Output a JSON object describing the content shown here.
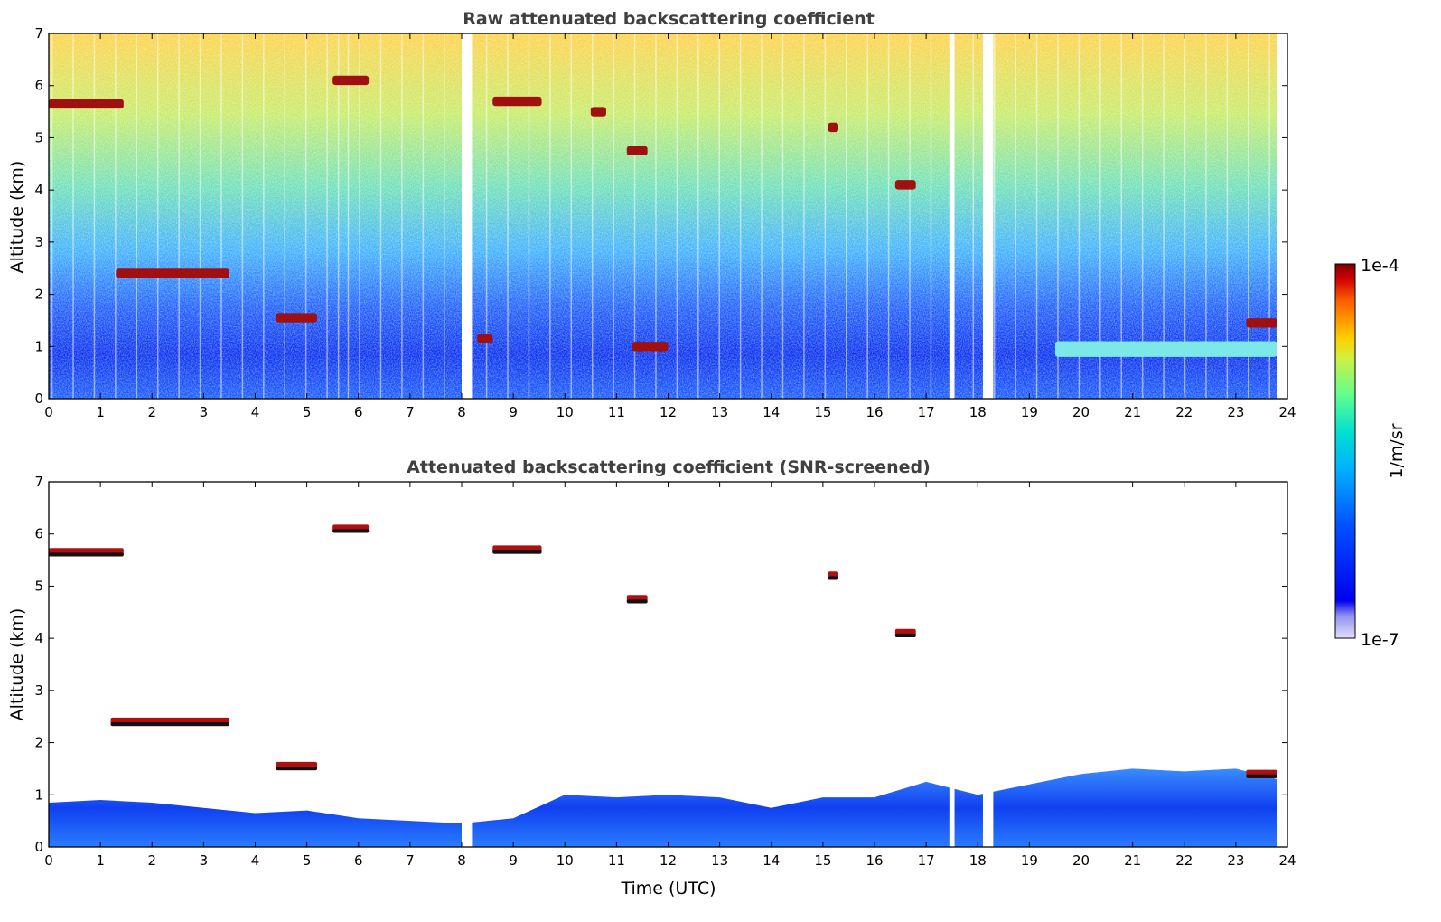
{
  "chart_data": [
    {
      "type": "heatmap",
      "title": "Raw attenuated backscattering coefficient",
      "xlabel": "",
      "ylabel": "Altitude (km)",
      "xlim": [
        0,
        24
      ],
      "ylim": [
        0,
        7
      ],
      "x_ticks": [
        "0",
        "1",
        "2",
        "3",
        "4",
        "5",
        "6",
        "7",
        "8",
        "9",
        "10",
        "11",
        "12",
        "13",
        "14",
        "15",
        "16",
        "17",
        "18",
        "19",
        "20",
        "21",
        "22",
        "23",
        "24"
      ],
      "y_ticks": [
        "0",
        "1",
        "2",
        "3",
        "4",
        "5",
        "6",
        "7"
      ],
      "data_gaps_utc": [
        [
          8.0,
          8.2
        ],
        [
          17.45,
          17.55
        ],
        [
          18.1,
          18.3
        ],
        [
          23.8,
          24.0
        ]
      ],
      "features": [
        {
          "kind": "cloud",
          "t_start": 0.0,
          "t_end": 1.45,
          "alt_km": 5.65,
          "intensity": "high"
        },
        {
          "kind": "cloud",
          "t_start": 1.3,
          "t_end": 3.5,
          "alt_km": 2.4,
          "intensity": "high"
        },
        {
          "kind": "cloud",
          "t_start": 4.4,
          "t_end": 5.2,
          "alt_km": 1.55,
          "intensity": "high"
        },
        {
          "kind": "cloud",
          "t_start": 5.5,
          "t_end": 6.2,
          "alt_km": 6.1,
          "intensity": "high"
        },
        {
          "kind": "cloud",
          "t_start": 8.6,
          "t_end": 9.55,
          "alt_km": 5.7,
          "intensity": "high"
        },
        {
          "kind": "cloud",
          "t_start": 8.3,
          "t_end": 8.6,
          "alt_km": 1.15,
          "intensity": "high"
        },
        {
          "kind": "cloud",
          "t_start": 10.5,
          "t_end": 10.8,
          "alt_km": 5.5,
          "intensity": "high"
        },
        {
          "kind": "cloud",
          "t_start": 11.2,
          "t_end": 11.6,
          "alt_km": 4.75,
          "intensity": "high"
        },
        {
          "kind": "cloud",
          "t_start": 11.3,
          "t_end": 12.0,
          "alt_km": 1.0,
          "intensity": "high"
        },
        {
          "kind": "cloud",
          "t_start": 15.1,
          "t_end": 15.3,
          "alt_km": 5.2,
          "intensity": "high"
        },
        {
          "kind": "cloud",
          "t_start": 16.4,
          "t_end": 16.8,
          "alt_km": 4.1,
          "intensity": "high"
        },
        {
          "kind": "cloud",
          "t_start": 23.2,
          "t_end": 23.8,
          "alt_km": 1.45,
          "intensity": "high"
        },
        {
          "kind": "aerosol_layer",
          "t_start": 19.5,
          "t_end": 23.8,
          "alt_km": 0.95,
          "intensity": "medium"
        }
      ]
    },
    {
      "type": "heatmap",
      "title": "Attenuated backscattering coefficient (SNR-screened)",
      "xlabel": "Time (UTC)",
      "ylabel": "Altitude (km)",
      "xlim": [
        0,
        24
      ],
      "ylim": [
        0,
        7
      ],
      "x_ticks": [
        "0",
        "1",
        "2",
        "3",
        "4",
        "5",
        "6",
        "7",
        "8",
        "9",
        "10",
        "11",
        "12",
        "13",
        "14",
        "15",
        "16",
        "17",
        "18",
        "19",
        "20",
        "21",
        "22",
        "23",
        "24"
      ],
      "y_ticks": [
        "0",
        "1",
        "2",
        "3",
        "4",
        "5",
        "6",
        "7"
      ],
      "boundary_layer_top_km": [
        [
          0,
          0.85
        ],
        [
          1,
          0.9
        ],
        [
          2,
          0.85
        ],
        [
          3,
          0.75
        ],
        [
          4,
          0.65
        ],
        [
          5,
          0.7
        ],
        [
          6,
          0.55
        ],
        [
          7,
          0.5
        ],
        [
          8,
          0.45
        ],
        [
          9,
          0.55
        ],
        [
          10,
          1.0
        ],
        [
          11,
          0.95
        ],
        [
          12,
          1.0
        ],
        [
          13,
          0.95
        ],
        [
          14,
          0.75
        ],
        [
          15,
          0.95
        ],
        [
          16,
          0.95
        ],
        [
          17,
          1.25
        ],
        [
          18,
          1.0
        ],
        [
          19,
          1.2
        ],
        [
          20,
          1.4
        ],
        [
          21,
          1.5
        ],
        [
          22,
          1.45
        ],
        [
          23,
          1.5
        ],
        [
          23.8,
          1.3
        ]
      ],
      "features": [
        {
          "kind": "cloud",
          "t_start": 0.0,
          "t_end": 1.45,
          "alt_km": 5.65
        },
        {
          "kind": "cloud",
          "t_start": 1.2,
          "t_end": 3.5,
          "alt_km": 2.4
        },
        {
          "kind": "cloud",
          "t_start": 4.4,
          "t_end": 5.2,
          "alt_km": 1.55
        },
        {
          "kind": "cloud",
          "t_start": 5.5,
          "t_end": 6.2,
          "alt_km": 6.1
        },
        {
          "kind": "cloud",
          "t_start": 8.6,
          "t_end": 9.55,
          "alt_km": 5.7
        },
        {
          "kind": "cloud",
          "t_start": 11.2,
          "t_end": 11.6,
          "alt_km": 4.75
        },
        {
          "kind": "cloud",
          "t_start": 15.1,
          "t_end": 15.3,
          "alt_km": 5.2
        },
        {
          "kind": "cloud",
          "t_start": 16.4,
          "t_end": 16.8,
          "alt_km": 4.1
        },
        {
          "kind": "cloud",
          "t_start": 23.2,
          "t_end": 23.8,
          "alt_km": 1.4
        }
      ]
    }
  ],
  "colorbar": {
    "label": "1/m/sr",
    "max_label": "1e-4",
    "min_label": "1e-7",
    "scale": "log",
    "range": [
      1e-07,
      0.0001
    ],
    "colormap": [
      "#e0e0f8",
      "#0000ee",
      "#0050ff",
      "#00a0ff",
      "#00e0e0",
      "#60ff90",
      "#d0f040",
      "#ffd000",
      "#ff7000",
      "#e01000",
      "#800000"
    ]
  }
}
